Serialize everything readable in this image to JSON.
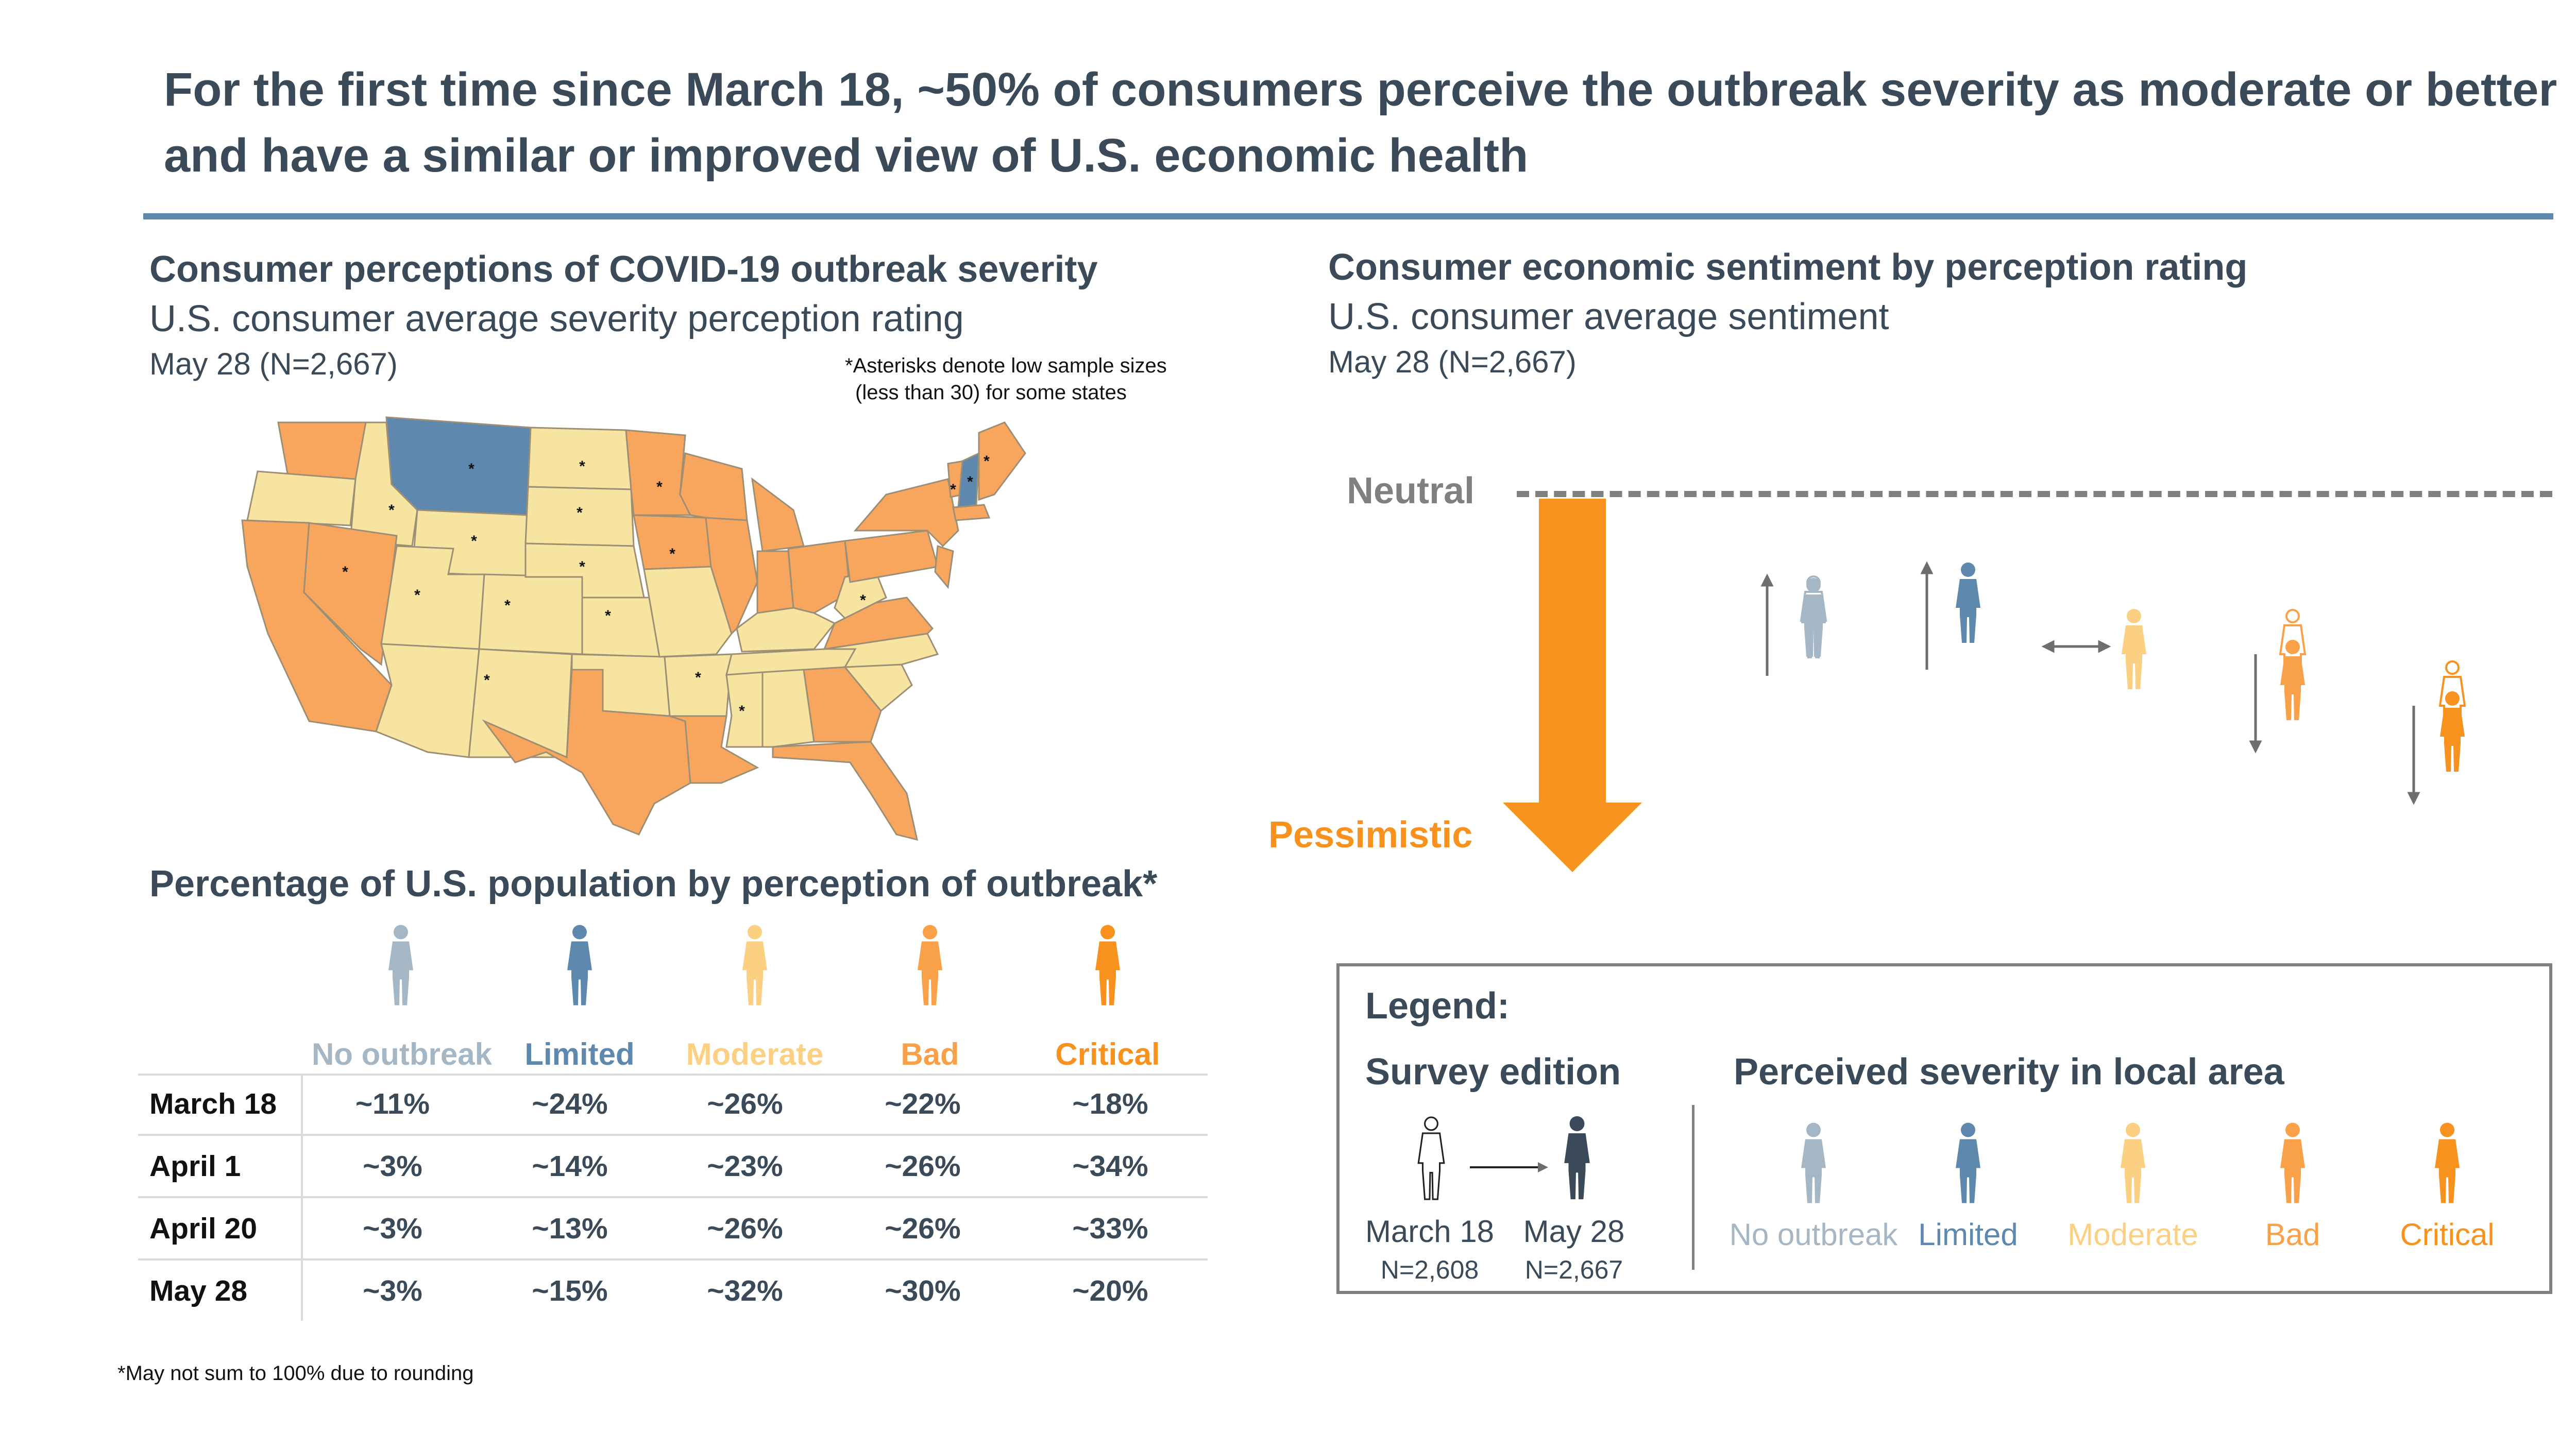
{
  "title": "For the first time since March 18, ~50% of consumers perceive the outbreak severity as moderate or better and have a similar or improved view of U.S. economic health",
  "colors": {
    "no_outbreak": "#a5b6c5",
    "limited": "#5e88ad",
    "moderate": "#fbd082",
    "bad": "#f8a149",
    "critical": "#f7921e",
    "dark": "#3a4a59",
    "map_low": "#f8e4a1",
    "map_high": "#f8a55e",
    "map_limited": "#5e88ad",
    "neutral_line": "#808080"
  },
  "map_section": {
    "heading": "Consumer perceptions of COVID-19 outbreak severity",
    "subheading": "U.S. consumer average severity perception rating",
    "date": "May 28 (N=2,667)",
    "note_line1": "*Asterisks denote low sample sizes",
    "note_line2": "(less than 30) for some states",
    "asterisk": "*"
  },
  "table_section": {
    "heading": "Percentage of U.S. population by perception of outbreak*",
    "columns": [
      "No outbreak",
      "Limited",
      "Moderate",
      "Bad",
      "Critical"
    ],
    "rows": [
      {
        "label": "March 18",
        "values": [
          "~11%",
          "~24%",
          "~26%",
          "~22%",
          "~18%"
        ]
      },
      {
        "label": "April 1",
        "values": [
          "~3%",
          "~14%",
          "~23%",
          "~26%",
          "~34%"
        ]
      },
      {
        "label": "April 20",
        "values": [
          "~3%",
          "~13%",
          "~26%",
          "~26%",
          "~33%"
        ]
      },
      {
        "label": "May 28",
        "values": [
          "~3%",
          "~15%",
          "~32%",
          "~30%",
          "~20%"
        ]
      }
    ],
    "footnote": "*May not sum to 100% due to rounding"
  },
  "sentiment_section": {
    "heading": "Consumer economic sentiment by perception rating",
    "subheading": "U.S. consumer average sentiment",
    "date": "May 28 (N=2,667)",
    "neutral_label": "Neutral",
    "pessimistic_label": "Pessimistic"
  },
  "legend": {
    "title": "Legend:",
    "survey_heading": "Survey edition",
    "edition_from": "March 18",
    "edition_from_n": "N=2,608",
    "edition_to": "May 28",
    "edition_to_n": "N=2,667",
    "severity_heading": "Perceived severity in local area",
    "severity_items": [
      "No outbreak",
      "Limited",
      "Moderate",
      "Bad",
      "Critical"
    ]
  }
}
